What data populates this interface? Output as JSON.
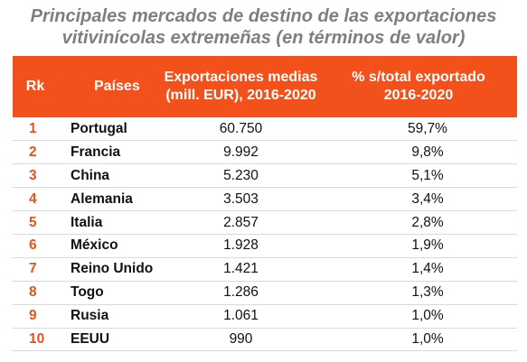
{
  "title": {
    "line1": "Principales mercados de destino de las exportaciones",
    "line2": "vitivinícolas extremeñas (en términos de valor)"
  },
  "columns": {
    "rank": "Rk",
    "country": "Países",
    "exports_line1": "Exportaciones medias",
    "exports_line2": "(mill. EUR), 2016-2020",
    "share_line1": "% s/total exportado",
    "share_line2": "2016-2020"
  },
  "rows": [
    {
      "rank": "1",
      "country": "Portugal",
      "exports": "60.750",
      "share": "59,7%"
    },
    {
      "rank": "2",
      "country": "Francia",
      "exports": "9.992",
      "share": "9,8%"
    },
    {
      "rank": "3",
      "country": "China",
      "exports": "5.230",
      "share": "5,1%"
    },
    {
      "rank": "4",
      "country": "Alemania",
      "exports": "3.503",
      "share": "3,4%"
    },
    {
      "rank": "5",
      "country": "Italia",
      "exports": "2.857",
      "share": "2,8%"
    },
    {
      "rank": "6",
      "country": "México",
      "exports": "1.928",
      "share": "1,9%"
    },
    {
      "rank": "7",
      "country": "Reino Unido",
      "exports": "1.421",
      "share": "1,4%"
    },
    {
      "rank": "8",
      "country": "Togo",
      "exports": "1.286",
      "share": "1,3%"
    },
    {
      "rank": "9",
      "country": "Rusia",
      "exports": "1.061",
      "share": "1,0%"
    },
    {
      "rank": "10",
      "country": "EEUU",
      "exports": "990",
      "share": "1,0%"
    }
  ],
  "colors": {
    "header_bg": "#f2511c",
    "rank_text": "#e8531c",
    "title_text": "#7f7f7f"
  }
}
